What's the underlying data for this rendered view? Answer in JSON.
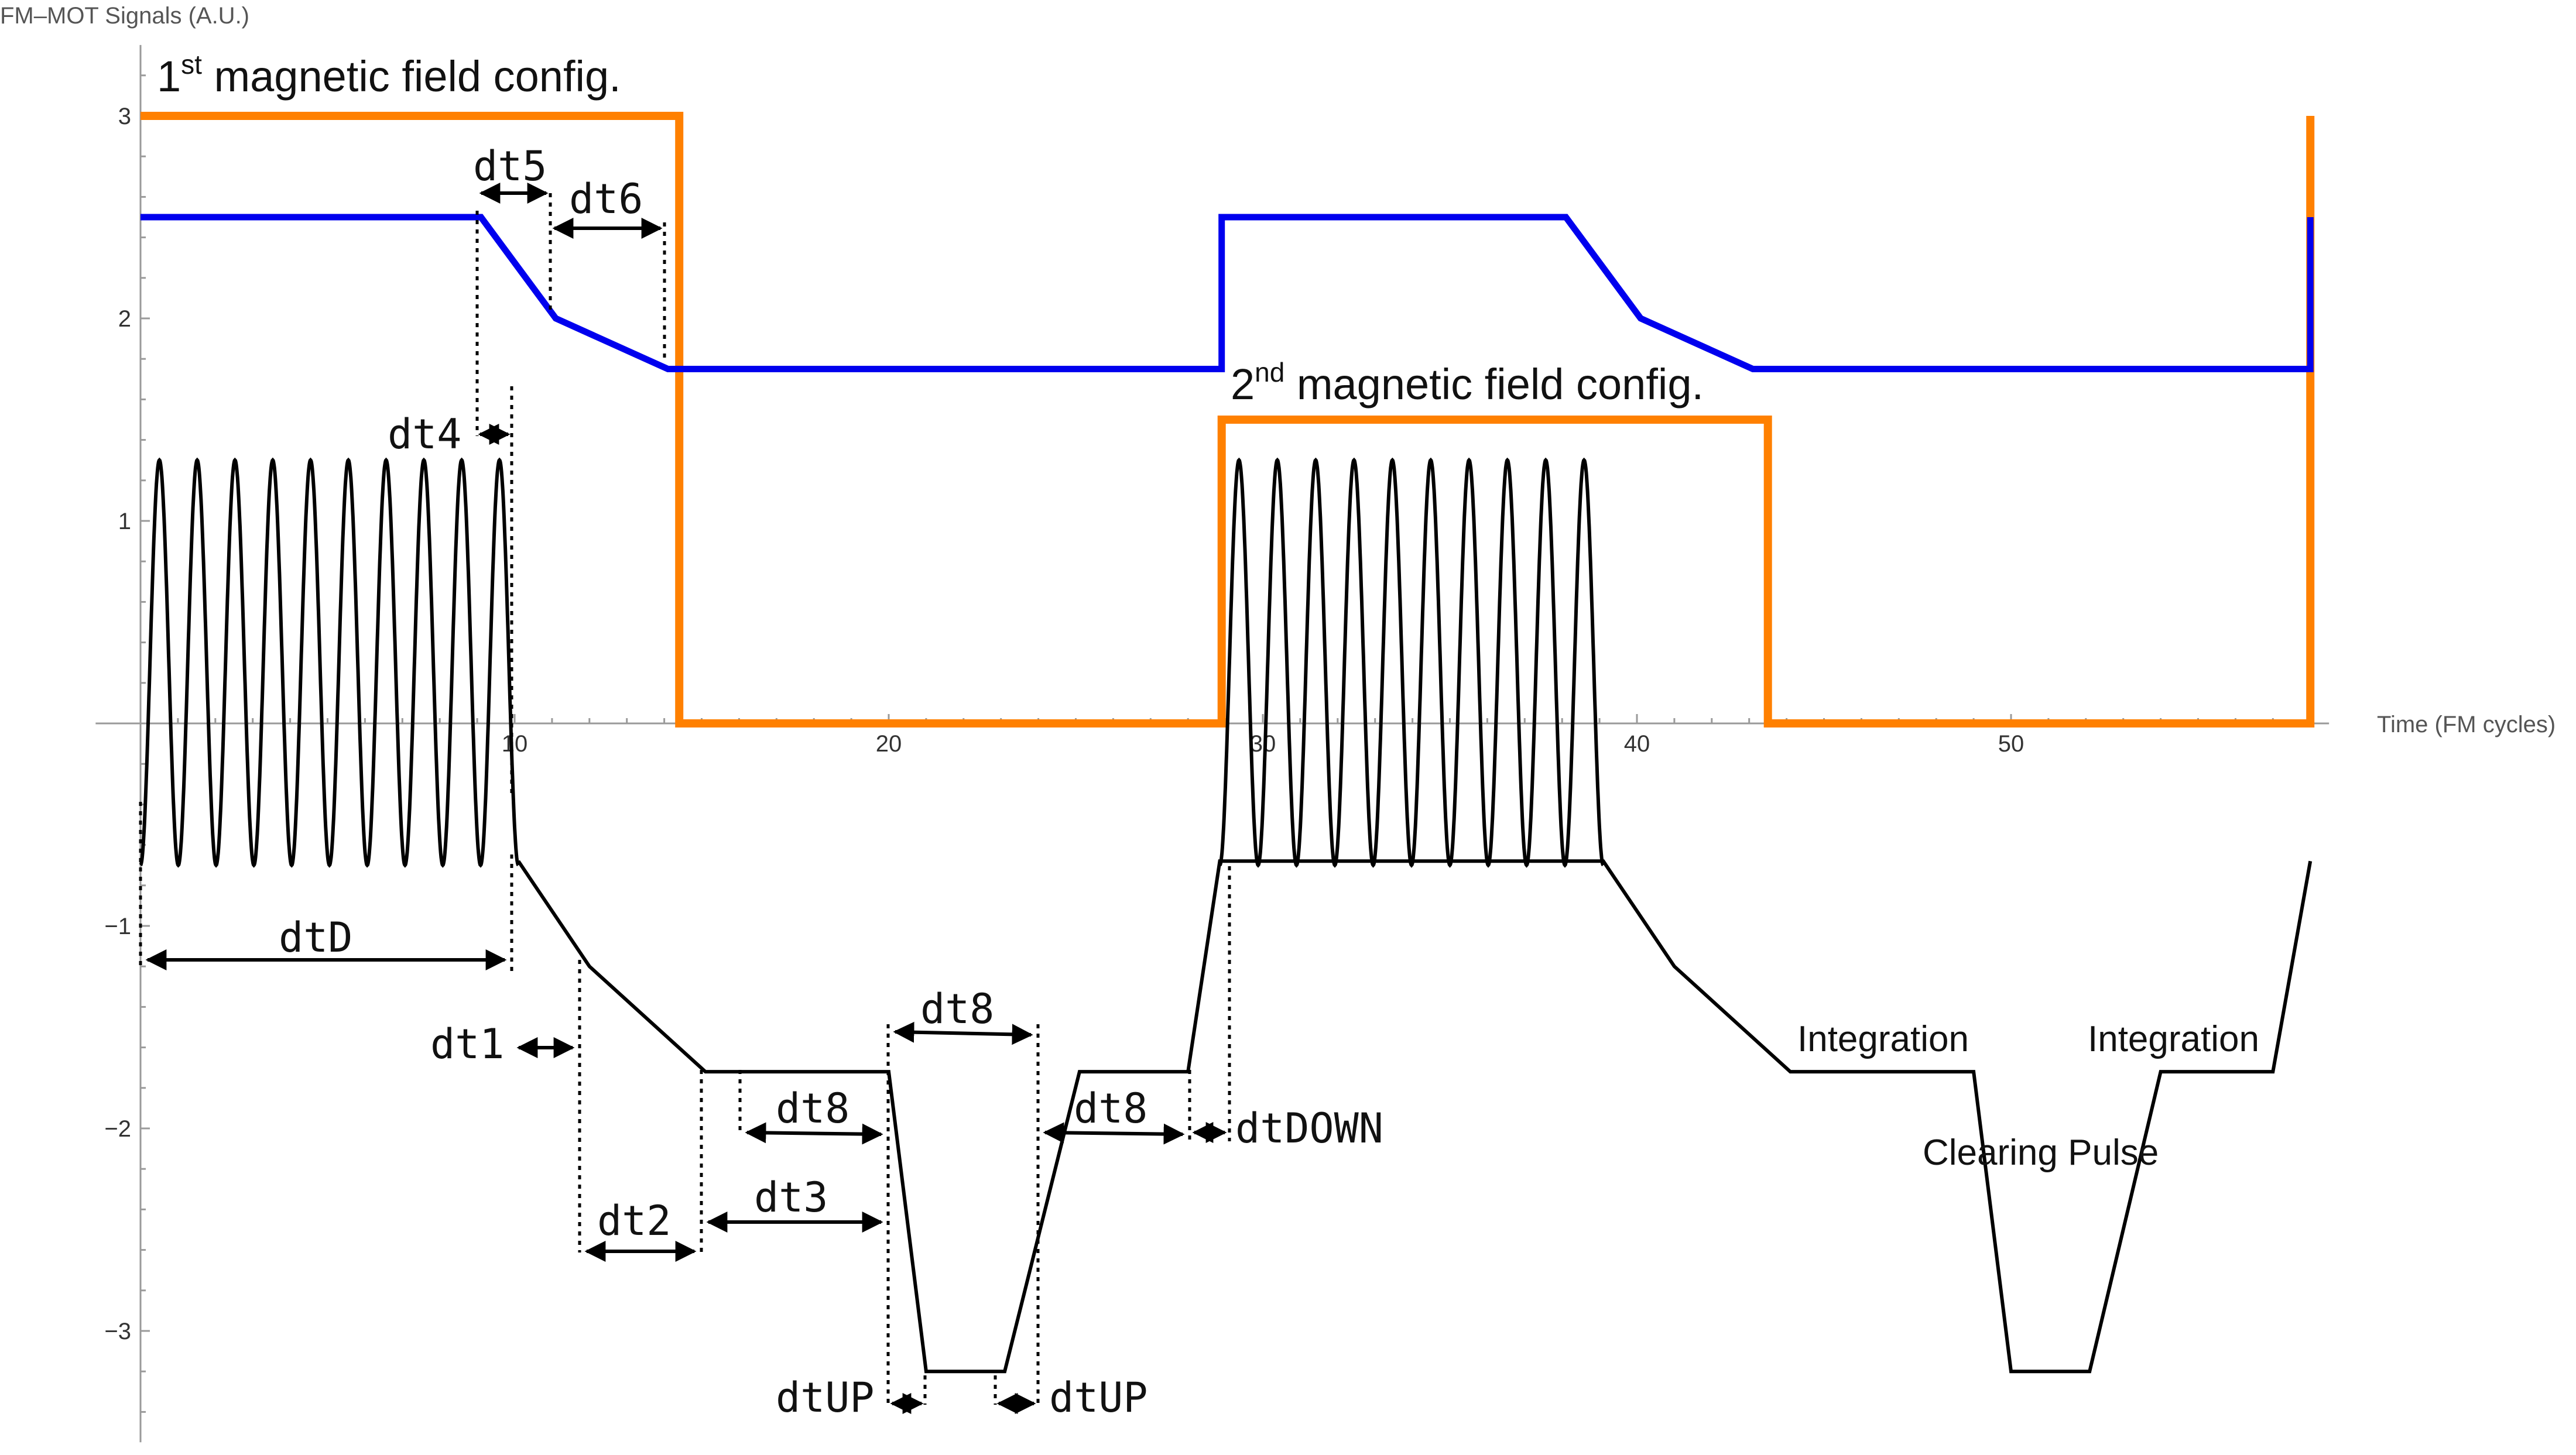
{
  "chart_data": {
    "type": "line",
    "title": "",
    "xlabel": "Time (FM cycles)",
    "ylabel": "FM–MOT Signals (A.U.)",
    "xlim": [
      -1.2,
      58.5
    ],
    "ylim": [
      -3.55,
      3.35
    ],
    "x_ticks": [
      10,
      20,
      30,
      40,
      50
    ],
    "y_ticks": [
      -3,
      -2,
      -1,
      1,
      2,
      3
    ],
    "x_tick_labels": [
      "10",
      "20",
      "30",
      "40",
      "50"
    ],
    "y_tick_labels": [
      "−3",
      "−2",
      "−1",
      "1",
      "2",
      "3"
    ],
    "colors": {
      "magnetic": "#ff8000",
      "blue": "#0000ee",
      "signal": "#000000"
    },
    "series": [
      {
        "color": "#ff8000",
        "x": [
          0,
          14.4,
          14.4,
          28.9,
          28.9,
          43.5,
          43.5,
          58.0,
          58.0
        ],
        "y": [
          3.0,
          3.0,
          0.0,
          0.0,
          1.5,
          1.5,
          0.0,
          0.0,
          3.0
        ]
      },
      {
        "color": "#0000ee",
        "x": [
          0,
          9.1,
          11.1,
          14.1,
          28.9,
          28.9,
          38.1,
          40.1,
          43.1,
          58.0,
          58.0
        ],
        "y": [
          2.5,
          2.5,
          2.0,
          1.75,
          1.75,
          2.5,
          2.5,
          2.0,
          1.75,
          1.75,
          2.5
        ]
      },
      {
        "color": "#000000",
        "x": [
          10.1,
          12.0,
          15.1,
          20.0,
          21.0,
          23.1,
          25.1,
          26.0,
          28.0,
          28.85,
          39.1,
          41.0,
          44.1,
          49.0,
          50.0,
          52.1,
          54.0,
          55.0,
          57.0,
          58.0
        ],
        "y": [
          -0.68,
          -1.2,
          -1.72,
          -1.72,
          -3.2,
          -3.2,
          -1.72,
          -1.72,
          -1.72,
          -0.68,
          -0.68,
          -1.2,
          -1.72,
          -1.72,
          -3.2,
          -3.2,
          -1.72,
          -1.72,
          -1.72,
          -0.68
        ]
      }
    ],
    "oscillations": [
      {
        "x_start": 0,
        "x_end": 10.1,
        "cycles": 10,
        "center": 0.3,
        "amplitude": 1.0
      },
      {
        "x_start": 28.85,
        "x_end": 39.1,
        "cycles": 10,
        "center": 0.3,
        "amplitude": 1.0
      }
    ],
    "annotations": {
      "config1": {
        "main": "1",
        "sup": "st",
        "rest": " magnetic field config."
      },
      "config2": {
        "main": "2",
        "sup": "nd",
        "rest": " magnetic field config."
      },
      "dt5": "dt5",
      "dt6": "dt6",
      "dt4": "dt4",
      "dtD": "dtD",
      "dt1": "dt1",
      "dt2": "dt2",
      "dt3": "dt3",
      "dt8a": "dt8",
      "dt8b": "dt8",
      "dt8c": "dt8",
      "dtDOWN": "dtDOWN",
      "dtUPa": "dtUP",
      "dtUPb": "dtUP",
      "integration1": "Integration",
      "integration2": "Integration",
      "clearing": "Clearing Pulse"
    }
  }
}
